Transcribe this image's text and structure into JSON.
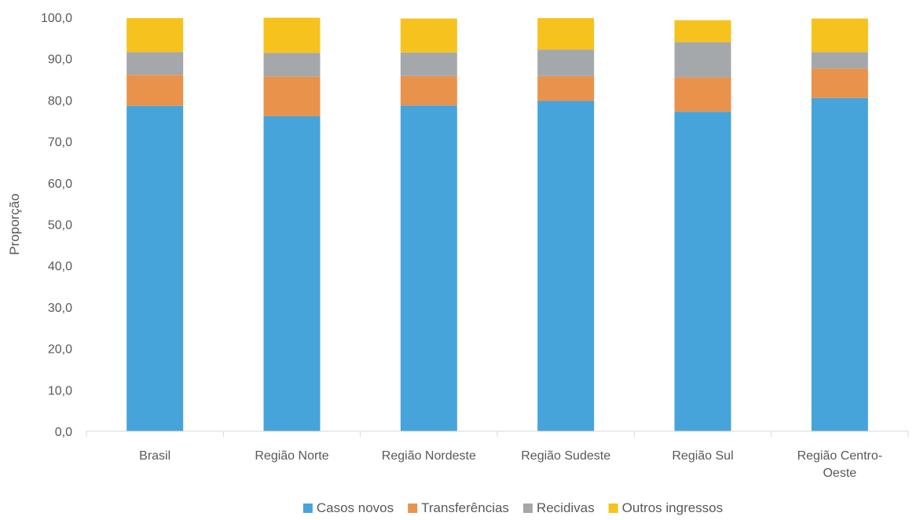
{
  "chart_data": {
    "type": "bar",
    "stacked": true,
    "title": "",
    "xlabel": "",
    "ylabel": "Proporção",
    "ylim": [
      0,
      100
    ],
    "yticks": [
      "0,0",
      "10,0",
      "20,0",
      "30,0",
      "40,0",
      "50,0",
      "60,0",
      "70,0",
      "80,0",
      "90,0",
      "100,0"
    ],
    "grid": false,
    "legend_position": "bottom",
    "categories": [
      "Brasil",
      "Região Norte",
      "Região Nordeste",
      "Região Sudeste",
      "Região Sul",
      "Região Centro-Oeste"
    ],
    "category_lines": [
      [
        "Brasil"
      ],
      [
        "Região Norte"
      ],
      [
        "Região Nordeste"
      ],
      [
        "Região Sudeste"
      ],
      [
        "Região Sul"
      ],
      [
        "Região Centro-",
        "Oeste"
      ]
    ],
    "series": [
      {
        "name": "Casos novos",
        "color": "#46A4DA",
        "values": [
          78.6,
          76.1,
          78.7,
          79.8,
          77.2,
          80.5
        ]
      },
      {
        "name": "Transferências",
        "color": "#E8924C",
        "values": [
          7.5,
          9.6,
          7.1,
          6.0,
          8.3,
          7.1
        ]
      },
      {
        "name": "Recidivas",
        "color": "#A5A8AB",
        "values": [
          5.5,
          5.7,
          5.7,
          6.4,
          8.5,
          4.0
        ]
      },
      {
        "name": "Outros ingressos",
        "color": "#F6C21D",
        "values": [
          8.2,
          8.5,
          8.2,
          7.6,
          5.3,
          8.1
        ]
      }
    ]
  }
}
